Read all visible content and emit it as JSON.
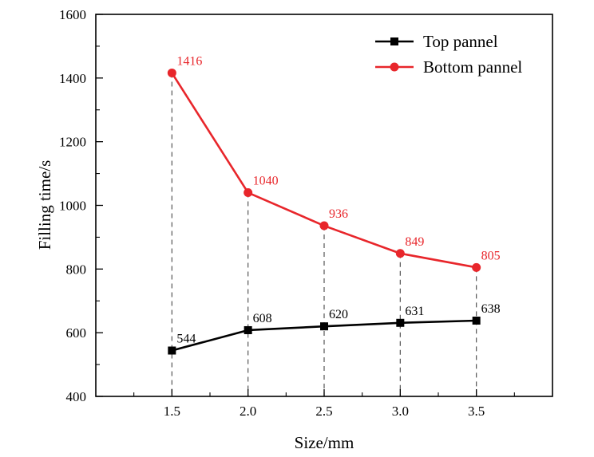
{
  "chart_data": {
    "type": "line",
    "title": "",
    "xlabel": "Size/mm",
    "ylabel": "Filling time/s",
    "x": [
      1.5,
      2.0,
      2.5,
      3.0,
      3.5
    ],
    "x_tick_labels": [
      "1.5",
      "2.0",
      "2.5",
      "3.0",
      "3.5"
    ],
    "xlim": [
      1.0,
      4.0
    ],
    "ylim": [
      400,
      1600
    ],
    "y_ticks": [
      400,
      600,
      800,
      1000,
      1200,
      1400,
      1600
    ],
    "y_tick_labels": [
      "400",
      "600",
      "800",
      "1000",
      "1200",
      "1400",
      "1600"
    ],
    "grid": false,
    "drop_lines": true,
    "legend_position": "top-right",
    "series": [
      {
        "name": "Top pannel",
        "marker": "square",
        "color": "#000000",
        "values": [
          544,
          608,
          620,
          631,
          638
        ],
        "labels": [
          "544",
          "608",
          "620",
          "631",
          "638"
        ]
      },
      {
        "name": "Bottom pannel",
        "marker": "circle",
        "color": "#e8262b",
        "values": [
          1416,
          1040,
          936,
          849,
          805
        ],
        "labels": [
          "1416",
          "1040",
          "936",
          "849",
          "805"
        ]
      }
    ]
  }
}
